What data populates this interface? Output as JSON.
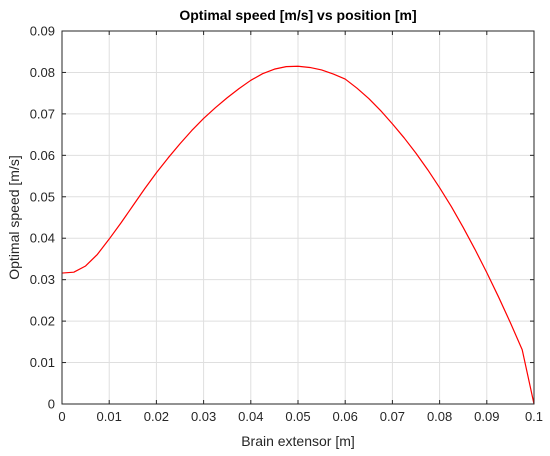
{
  "chart_data": {
    "type": "line",
    "title": "Optimal speed [m/s] vs position [m]",
    "xlabel": "Brain extensor [m]",
    "ylabel": "Optimal speed [m/s]",
    "xlim": [
      0,
      0.1
    ],
    "ylim": [
      0,
      0.09
    ],
    "xticks": [
      "0",
      "0.01",
      "0.02",
      "0.03",
      "0.04",
      "0.05",
      "0.06",
      "0.07",
      "0.08",
      "0.09",
      "0.1"
    ],
    "yticks": [
      "0",
      "0.01",
      "0.02",
      "0.03",
      "0.04",
      "0.05",
      "0.06",
      "0.07",
      "0.08",
      "0.09"
    ],
    "grid": true,
    "series": [
      {
        "color": "#ff0000",
        "x": [
          0,
          0.0025,
          0.005,
          0.0075,
          0.01,
          0.0125,
          0.015,
          0.0175,
          0.02,
          0.0225,
          0.025,
          0.0275,
          0.03,
          0.0325,
          0.035,
          0.0375,
          0.04,
          0.0425,
          0.045,
          0.0475,
          0.05,
          0.0525,
          0.055,
          0.0575,
          0.06,
          0.0625,
          0.065,
          0.0675,
          0.07,
          0.0725,
          0.075,
          0.0775,
          0.08,
          0.0825,
          0.085,
          0.0875,
          0.09,
          0.0925,
          0.095,
          0.0975,
          0.1
        ],
        "y": [
          0.0316,
          0.0318,
          0.0333,
          0.0361,
          0.0398,
          0.0437,
          0.0478,
          0.0519,
          0.0558,
          0.0594,
          0.0628,
          0.066,
          0.0689,
          0.0715,
          0.0739,
          0.0761,
          0.0781,
          0.0797,
          0.0808,
          0.0814,
          0.0815,
          0.0812,
          0.0806,
          0.0796,
          0.0784,
          0.0762,
          0.0737,
          0.0708,
          0.0676,
          0.0642,
          0.0605,
          0.0565,
          0.0522,
          0.0476,
          0.0426,
          0.0373,
          0.0317,
          0.0258,
          0.0196,
          0.0131,
          0.0
        ]
      }
    ]
  }
}
